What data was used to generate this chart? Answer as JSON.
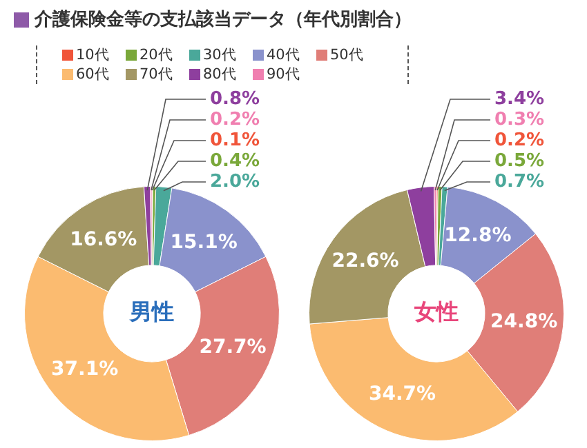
{
  "chart_data": {
    "type": "donut",
    "title": "介護保険金等の支払該当データ（年代別割合）",
    "legend": "top",
    "categories": [
      "10代",
      "20代",
      "30代",
      "40代",
      "50代",
      "60代",
      "70代",
      "80代",
      "90代"
    ],
    "colors": [
      "#f0553a",
      "#7aa83a",
      "#4aa89a",
      "#8a92cc",
      "#e07e78",
      "#fbbb70",
      "#a39764",
      "#8e3f9e",
      "#f07fb0"
    ],
    "series": [
      {
        "name": "男性",
        "values": [
          0.1,
          0.4,
          2.0,
          15.1,
          27.7,
          37.1,
          16.6,
          0.8,
          0.2
        ],
        "value_labels": [
          "0.1%",
          "0.4%",
          "2.0%",
          "15.1%",
          "27.7%",
          "37.1%",
          "16.6%",
          "0.8%",
          "0.2%"
        ]
      },
      {
        "name": "女性",
        "values": [
          0.2,
          0.5,
          0.7,
          12.8,
          24.8,
          34.7,
          22.6,
          3.4,
          0.3
        ],
        "value_labels": [
          "0.2%",
          "0.5%",
          "0.7%",
          "12.8%",
          "24.8%",
          "34.7%",
          "22.6%",
          "3.4%",
          "0.3%"
        ]
      }
    ]
  }
}
